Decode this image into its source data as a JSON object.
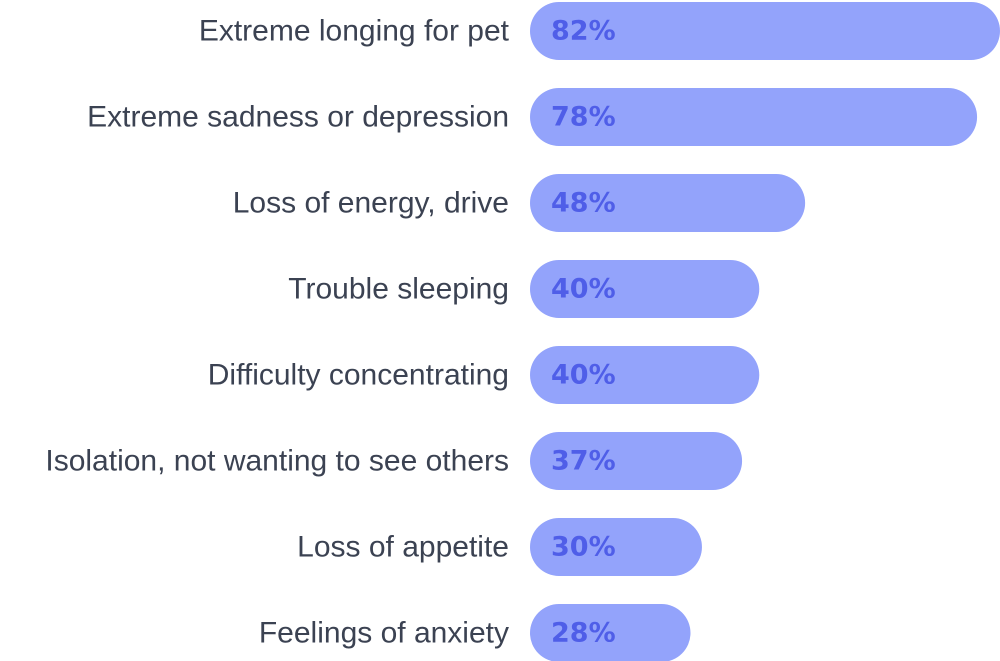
{
  "chart_data": {
    "type": "bar",
    "orientation": "horizontal",
    "categories": [
      "Extreme longing for pet",
      "Extreme sadness or depression",
      "Loss of energy, drive",
      "Trouble sleeping",
      "Difficulty concentrating",
      "Isolation, not wanting to see others",
      "Loss of appetite",
      "Feelings of anxiety"
    ],
    "values": [
      82,
      78,
      48,
      40,
      40,
      37,
      30,
      28
    ],
    "value_labels": [
      "82%",
      "78%",
      "48%",
      "40%",
      "40%",
      "37%",
      "30%",
      "28%"
    ],
    "unit": "%",
    "xlim": [
      0,
      82
    ],
    "grid": false,
    "legend": "none",
    "colors": {
      "bar": "#93a3fb",
      "value_text": "#4f5ee8",
      "label_text": "#3b4252"
    }
  }
}
